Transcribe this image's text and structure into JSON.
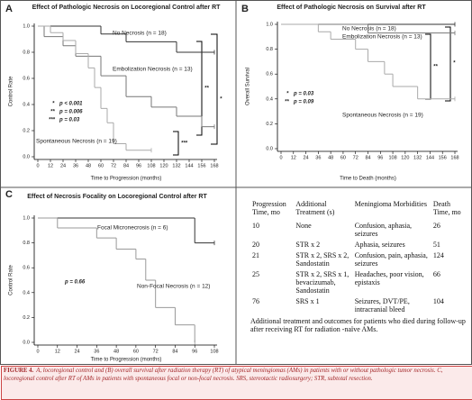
{
  "panel_labels": [
    "A",
    "B",
    "C"
  ],
  "chart_data": [
    {
      "type": "step",
      "title": "Effect of Pathologic Necrosis on Locoregional Control after RT",
      "xlabel": "Time to Progression (months)",
      "ylabel": "Control Rate",
      "xlim": [
        0,
        168
      ],
      "ylim": [
        0,
        1
      ],
      "xticks": [
        0,
        12,
        24,
        36,
        48,
        60,
        72,
        84,
        96,
        108,
        120,
        132,
        144,
        156,
        168
      ],
      "yticks": [
        {
          "value": 0,
          "label": "0.0"
        },
        0.2,
        0.4,
        0.6,
        0.8,
        {
          "value": 1,
          "label": "1.0"
        }
      ],
      "series": [
        {
          "name": "No Necrosis (n = 18)",
          "color": "#333333",
          "x": [
            0,
            60,
            84,
            132,
            168
          ],
          "values": [
            1,
            0.94,
            0.88,
            0.8,
            0.8
          ]
        },
        {
          "name": "Embolization Necrosis (n = 13)",
          "color": "#777777",
          "x": [
            0,
            6,
            24,
            36,
            60,
            84,
            108,
            132,
            156,
            168
          ],
          "values": [
            1,
            0.92,
            0.85,
            0.77,
            0.62,
            0.46,
            0.38,
            0.31,
            0.23,
            0.23
          ]
        },
        {
          "name": "Spontaneous Necrosis (n = 19)",
          "color": "#aaaaaa",
          "x": [
            0,
            12,
            24,
            36,
            48,
            54,
            60,
            66,
            72,
            84,
            108
          ],
          "values": [
            1,
            0.95,
            0.89,
            0.79,
            0.68,
            0.53,
            0.37,
            0.26,
            0.1,
            0.05,
            0.05
          ]
        }
      ],
      "annotations": [
        "*",
        "p < 0.001",
        "**",
        "p = 0.006",
        "***",
        "p = 0.03",
        "**",
        "*",
        "***"
      ]
    },
    {
      "type": "step",
      "title": "Effect of Pathologic Necrosis on Survival after RT",
      "xlabel": "Time to Death (months)",
      "ylabel": "Overall Survival",
      "xlim": [
        0,
        168
      ],
      "ylim": [
        0,
        1
      ],
      "xticks": [
        0,
        12,
        24,
        36,
        48,
        60,
        72,
        84,
        96,
        108,
        120,
        132,
        144,
        156,
        168
      ],
      "yticks": [
        {
          "value": 0,
          "label": "0.0"
        },
        0.2,
        0.4,
        0.6,
        0.8,
        {
          "value": 1,
          "label": "1.0"
        }
      ],
      "series": [
        {
          "name": "No Necrosis (n = 18)",
          "color": "#333333",
          "x": [
            0,
            168
          ],
          "values": [
            1,
            1
          ]
        },
        {
          "name": "Embolization Necrosis (n = 13)",
          "color": "#777777",
          "x": [
            0,
            84,
            168
          ],
          "values": [
            1,
            0.93,
            0.93
          ]
        },
        {
          "name": "Spontaneous Necrosis (n = 19)",
          "color": "#aaaaaa",
          "x": [
            0,
            36,
            48,
            72,
            84,
            100,
            108,
            132,
            168
          ],
          "values": [
            1,
            0.94,
            0.88,
            0.8,
            0.7,
            0.6,
            0.5,
            0.4,
            0.4
          ]
        }
      ],
      "annotations": [
        "*",
        "p = 0.03",
        "**",
        "p = 0.09",
        "**",
        "*"
      ]
    },
    {
      "type": "step",
      "title": "Effect of Necrosis Focality on Locoregional Control after RT",
      "xlabel": "Time to Progression (months)",
      "ylabel": "Control Rate",
      "xlim": [
        0,
        108
      ],
      "ylim": [
        0,
        1
      ],
      "xticks": [
        0,
        12,
        24,
        36,
        48,
        60,
        72,
        84,
        96,
        108
      ],
      "yticks": [
        {
          "value": 0,
          "label": "0.0"
        },
        0.2,
        0.4,
        0.6,
        0.8,
        {
          "value": 1,
          "label": "1.0"
        }
      ],
      "series": [
        {
          "name": "Focal Micronecrosis (n = 6)",
          "color": "#333333",
          "x": [
            0,
            96,
            108
          ],
          "values": [
            1,
            0.8,
            0.8
          ]
        },
        {
          "name": "Non-Focal Necrosis (n = 12)",
          "color": "#999999",
          "x": [
            0,
            12,
            36,
            48,
            60,
            66,
            72,
            84,
            96
          ],
          "values": [
            1,
            0.92,
            0.84,
            0.75,
            0.67,
            0.5,
            0.28,
            0.14,
            0
          ]
        }
      ],
      "annotations": [
        "p = 0.66"
      ]
    }
  ],
  "table": {
    "headers": [
      "Progression Time, mo",
      "Additional Treatment (s)",
      "Meningioma Morbidities",
      "Death Time, mo"
    ],
    "rows": [
      [
        10,
        "None",
        "Confusion, aphasia, seizures",
        26
      ],
      [
        20,
        "STR x 2",
        "Aphasia, seizures",
        51
      ],
      [
        21,
        "STR x 2, SRS x 2, Sandostatin",
        "Confusion, pain, aphasia, seizures",
        124
      ],
      [
        25,
        "STR x 2, SRS x 1, bevacizumab, Sandostatin",
        "Headaches, poor vision, epistaxis",
        66
      ],
      [
        76,
        "SRS x 1",
        "Seizures, DVT/PE, intracranial bleed",
        104
      ]
    ],
    "footnote": "Additional treatment and outcomes for patients who died during follow-up after receiving RT for radiation -naïve AMs."
  },
  "caption": {
    "label": "FIGURE 4.",
    "text": "A, locoregional control and (B) overall survival after radiation therapy (RT) of atypical meningiomas (AMs) in patients with or without pathologic tumor necrosis. C, locoregional control after RT of AMs in patients with spontaneous focal or non-focal necrosis. SRS, stereotactic radiosurgery; STR, subtotal resection."
  }
}
